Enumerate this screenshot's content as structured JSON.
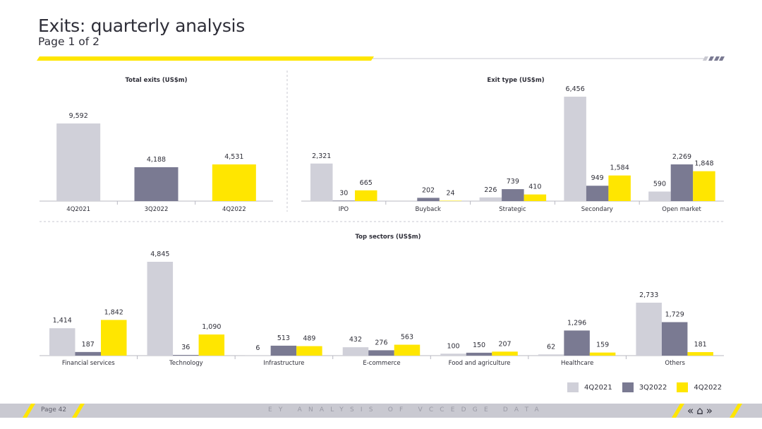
{
  "header": {
    "title": "Exits: quarterly analysis",
    "subtitle": "Page 1 of 2"
  },
  "colors": {
    "q4_2021": "#d0d0d9",
    "q3_2022": "#7a7a92",
    "q4_2022": "#ffe600",
    "accent_yellow": "#ffe600",
    "footer_bg": "#c9c9d1",
    "text": "#2e2e38"
  },
  "legend": {
    "items": [
      {
        "label": "4Q2021",
        "color": "#d0d0d9"
      },
      {
        "label": "3Q2022",
        "color": "#7a7a92"
      },
      {
        "label": "4Q2022",
        "color": "#ffe600"
      }
    ]
  },
  "chart_data": [
    {
      "type": "bar",
      "title": "Total exits (US$m)",
      "categories": [
        "4Q2021",
        "3Q2022",
        "4Q2022"
      ],
      "values": [
        9592,
        4188,
        4531
      ],
      "labels": [
        "9,592",
        "4,188",
        "4,531"
      ],
      "colors": [
        "#d0d0d9",
        "#7a7a92",
        "#ffe600"
      ]
    },
    {
      "type": "bar",
      "title": "Exit type (US$m)",
      "categories": [
        "IPO",
        "Buyback",
        "Strategic",
        "Secondary",
        "Open market"
      ],
      "series": [
        {
          "name": "4Q2021",
          "values": [
            2321,
            0,
            226,
            6456,
            590
          ],
          "labels": [
            "2,321",
            "",
            "226",
            "6,456",
            "590"
          ]
        },
        {
          "name": "3Q2022",
          "values": [
            30,
            202,
            739,
            949,
            2269
          ],
          "labels": [
            "30",
            "202",
            "739",
            "949",
            "2,269"
          ]
        },
        {
          "name": "4Q2022",
          "values": [
            665,
            24,
            410,
            1584,
            1848
          ],
          "labels": [
            "665",
            "24",
            "410",
            "1,584",
            "1,848"
          ]
        }
      ]
    },
    {
      "type": "bar",
      "title": "Top sectors (US$m)",
      "categories": [
        "Financial services",
        "Technology",
        "Infrastructure",
        "E-commerce",
        "Food and agriculture",
        "Healthcare",
        "Others"
      ],
      "series": [
        {
          "name": "4Q2021",
          "values": [
            1414,
            4845,
            6,
            432,
            100,
            62,
            2733
          ],
          "labels": [
            "1,414",
            "4,845",
            "6",
            "432",
            "100",
            "62",
            "2,733"
          ]
        },
        {
          "name": "3Q2022",
          "values": [
            187,
            36,
            513,
            276,
            150,
            1296,
            1729
          ],
          "labels": [
            "187",
            "36",
            "513",
            "276",
            "150",
            "1,296",
            "1,729"
          ]
        },
        {
          "name": "4Q2022",
          "values": [
            1842,
            1090,
            489,
            563,
            207,
            159,
            181
          ],
          "labels": [
            "1,842",
            "1,090",
            "489",
            "563",
            "207",
            "159",
            "181"
          ]
        }
      ]
    }
  ],
  "footer": {
    "page": "Page 42",
    "center_text": "EY ANALYSIS OF VCCEDGE DATA",
    "nav_prev": "«",
    "nav_home": "⌂",
    "nav_next": "»"
  }
}
